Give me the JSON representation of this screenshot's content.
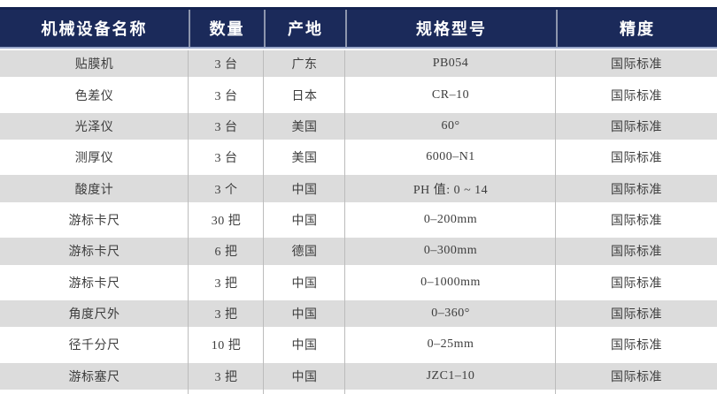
{
  "colors": {
    "header_bg": "#1b2a5a",
    "header_top_edge": "#142350",
    "header_underline": "#98a6ca",
    "header_text": "#ffffff",
    "row_alt_bg": "#dcdcdc",
    "row_bg": "#ffffff",
    "divider": "#bcbcbc",
    "body_text": "#3d3d3d"
  },
  "table": {
    "headers": [
      "机械设备名称",
      "数量",
      "产地",
      "规格型号",
      "精度"
    ],
    "rows": [
      [
        "贴膜机",
        "3 台",
        "广东",
        "PB054",
        "国际标准"
      ],
      [
        "色差仪",
        "3 台",
        "日本",
        "CR–10",
        "国际标准"
      ],
      [
        "光泽仪",
        "3 台",
        "美国",
        "60°",
        "国际标准"
      ],
      [
        "测厚仪",
        "3 台",
        "美国",
        "6000–N1",
        "国际标准"
      ],
      [
        "酸度计",
        "3 个",
        "中国",
        "PH 值: 0 ~ 14",
        "国际标准"
      ],
      [
        "游标卡尺",
        "30 把",
        "中国",
        "0–200mm",
        "国际标准"
      ],
      [
        "游标卡尺",
        "6 把",
        "德国",
        "0–300mm",
        "国际标准"
      ],
      [
        "游标卡尺",
        "3 把",
        "中国",
        "0–1000mm",
        "国际标准"
      ],
      [
        "角度尺外",
        "3 把",
        "中国",
        "0–360°",
        "国际标准"
      ],
      [
        "径千分尺",
        "10 把",
        "中国",
        "0–25mm",
        "国际标准"
      ],
      [
        "游标塞尺",
        "3 把",
        "中国",
        "JZC1–10",
        "国际标准"
      ]
    ]
  }
}
